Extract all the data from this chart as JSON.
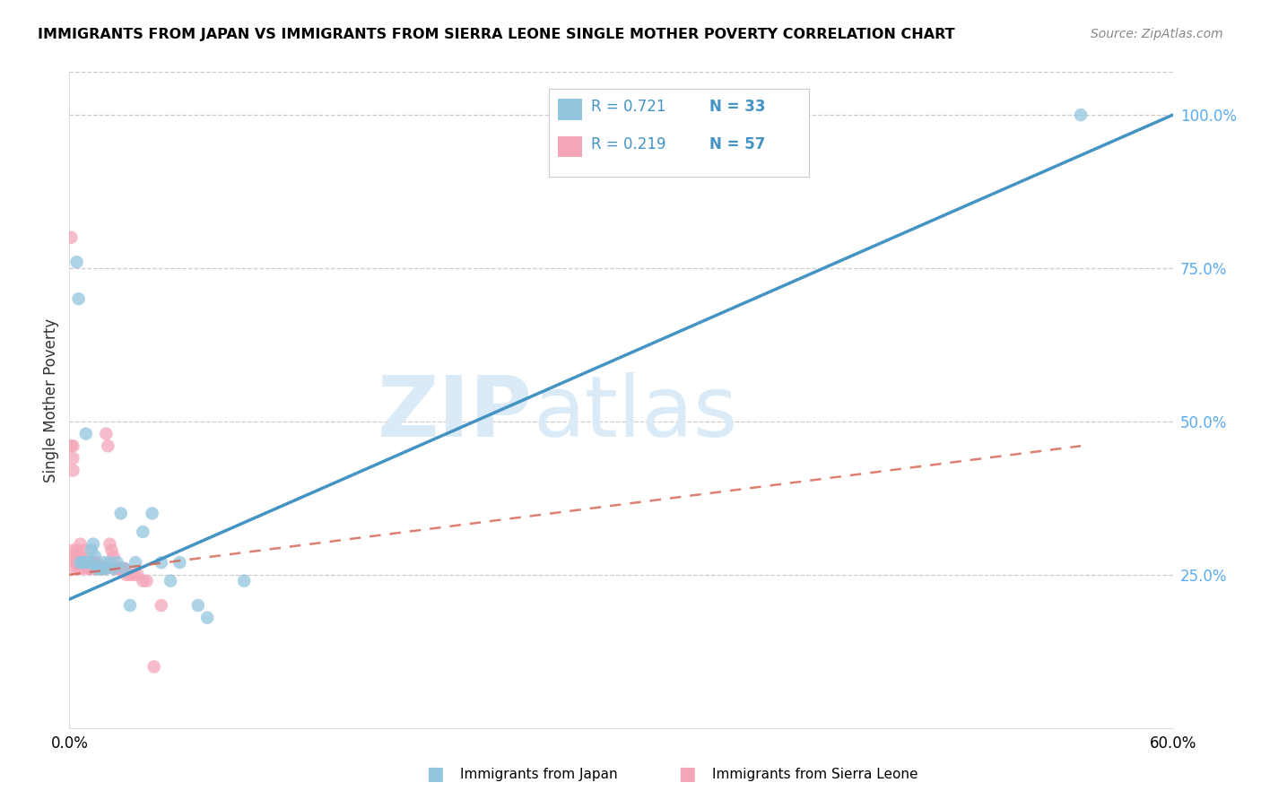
{
  "title": "IMMIGRANTS FROM JAPAN VS IMMIGRANTS FROM SIERRA LEONE SINGLE MOTHER POVERTY CORRELATION CHART",
  "source": "Source: ZipAtlas.com",
  "ylabel": "Single Mother Poverty",
  "ytick_labels": [
    "100.0%",
    "75.0%",
    "50.0%",
    "25.0%"
  ],
  "ytick_values": [
    1.0,
    0.75,
    0.5,
    0.25
  ],
  "legend_R_japan": "R = 0.721",
  "legend_N_japan": "N = 33",
  "legend_R_sierra": "R = 0.219",
  "legend_N_sierra": "N = 57",
  "legend_label_japan": "Immigrants from Japan",
  "legend_label_sierra": "Immigrants from Sierra Leone",
  "color_japan": "#92c5de",
  "color_sierra": "#f4a6b8",
  "color_japan_line": "#4393c3",
  "color_sierra_line": "#d6604d",
  "color_axis_right": "#5aabf0",
  "color_axis_tick": "#5aabf0",
  "japan_x": [
    0.004,
    0.005,
    0.006,
    0.007,
    0.008,
    0.009,
    0.01,
    0.011,
    0.012,
    0.013,
    0.014,
    0.015,
    0.016,
    0.017,
    0.018,
    0.019,
    0.02,
    0.022,
    0.024,
    0.026,
    0.028,
    0.03,
    0.033,
    0.036,
    0.04,
    0.045,
    0.05,
    0.055,
    0.06,
    0.07,
    0.075,
    0.095,
    0.55
  ],
  "japan_y": [
    0.76,
    0.7,
    0.27,
    0.27,
    0.27,
    0.48,
    0.27,
    0.27,
    0.29,
    0.3,
    0.28,
    0.26,
    0.26,
    0.26,
    0.26,
    0.27,
    0.26,
    0.27,
    0.26,
    0.27,
    0.35,
    0.26,
    0.2,
    0.27,
    0.32,
    0.35,
    0.27,
    0.24,
    0.27,
    0.2,
    0.18,
    0.24,
    1.0
  ],
  "sierra_x": [
    0.001,
    0.001,
    0.002,
    0.002,
    0.002,
    0.002,
    0.003,
    0.003,
    0.003,
    0.004,
    0.004,
    0.005,
    0.005,
    0.005,
    0.006,
    0.006,
    0.007,
    0.007,
    0.008,
    0.008,
    0.009,
    0.01,
    0.01,
    0.011,
    0.011,
    0.012,
    0.012,
    0.013,
    0.013,
    0.014,
    0.014,
    0.015,
    0.015,
    0.016,
    0.017,
    0.018,
    0.018,
    0.019,
    0.02,
    0.021,
    0.022,
    0.023,
    0.024,
    0.025,
    0.026,
    0.027,
    0.028,
    0.029,
    0.03,
    0.031,
    0.033,
    0.035,
    0.037,
    0.04,
    0.042,
    0.046,
    0.05
  ],
  "sierra_y": [
    0.8,
    0.46,
    0.46,
    0.44,
    0.42,
    0.29,
    0.28,
    0.27,
    0.26,
    0.29,
    0.27,
    0.28,
    0.27,
    0.26,
    0.3,
    0.28,
    0.27,
    0.26,
    0.29,
    0.27,
    0.27,
    0.27,
    0.26,
    0.27,
    0.26,
    0.27,
    0.26,
    0.27,
    0.26,
    0.27,
    0.26,
    0.27,
    0.26,
    0.26,
    0.26,
    0.26,
    0.26,
    0.26,
    0.48,
    0.46,
    0.3,
    0.29,
    0.28,
    0.26,
    0.26,
    0.26,
    0.26,
    0.26,
    0.26,
    0.25,
    0.25,
    0.25,
    0.25,
    0.24,
    0.24,
    0.1,
    0.2
  ],
  "xlim": [
    0.0,
    0.6
  ],
  "ylim": [
    0.0,
    1.07
  ],
  "japan_trend_x": [
    0.0,
    0.6
  ],
  "japan_trend_y": [
    0.21,
    1.0
  ],
  "sierra_trend_x": [
    0.0,
    0.55
  ],
  "sierra_trend_y": [
    0.25,
    0.46
  ],
  "xtick_positions": [
    0.0,
    0.1,
    0.2,
    0.3,
    0.4,
    0.5,
    0.6
  ],
  "xtick_labels": [
    "0.0%",
    "",
    "",
    "",
    "",
    "",
    "60.0%"
  ]
}
